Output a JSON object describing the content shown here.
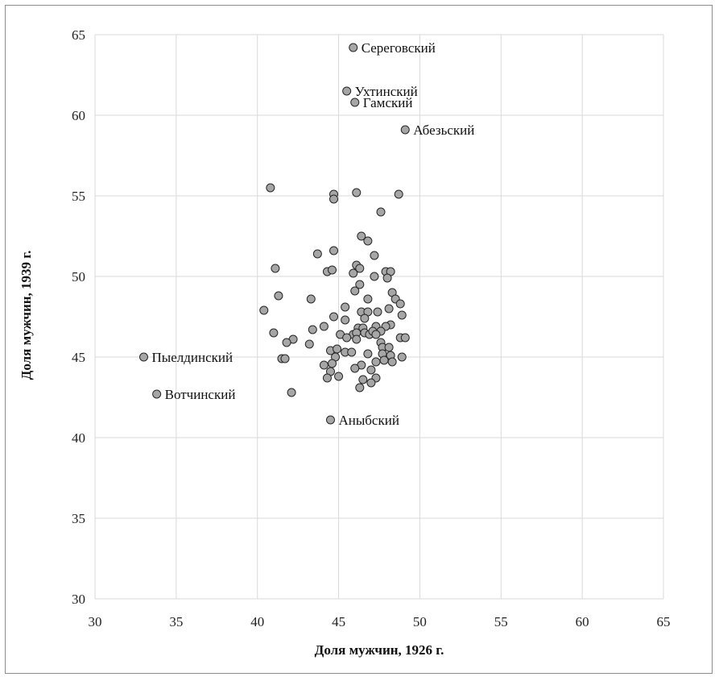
{
  "chart_data": {
    "type": "scatter",
    "title": "",
    "xlabel": "Доля мужчин, 1926 г.",
    "ylabel": "Доля мужчин, 1939 г.",
    "xlim": [
      30,
      65
    ],
    "ylim": [
      30,
      65
    ],
    "xticks": [
      30,
      35,
      40,
      45,
      50,
      55,
      60,
      65
    ],
    "yticks": [
      30,
      35,
      40,
      45,
      50,
      55,
      60,
      65
    ],
    "grid": true,
    "legend": "none",
    "marker_fill": "#a6a6a6",
    "marker_stroke": "#262626",
    "labeled_points": [
      {
        "label": "Сереговский",
        "x": 45.9,
        "y": 64.2
      },
      {
        "label": "Ухтинский",
        "x": 45.5,
        "y": 61.5
      },
      {
        "label": "Гамский",
        "x": 46.0,
        "y": 60.8
      },
      {
        "label": "Абезьский",
        "x": 49.1,
        "y": 59.1
      },
      {
        "label": "Пыелдинский",
        "x": 33.0,
        "y": 45.0
      },
      {
        "label": "Вотчинский",
        "x": 33.8,
        "y": 42.7
      },
      {
        "label": "Аныбский",
        "x": 44.5,
        "y": 41.1
      }
    ],
    "points": [
      {
        "x": 40.8,
        "y": 55.5
      },
      {
        "x": 44.7,
        "y": 55.1
      },
      {
        "x": 44.7,
        "y": 54.8
      },
      {
        "x": 46.1,
        "y": 55.2
      },
      {
        "x": 48.7,
        "y": 55.1
      },
      {
        "x": 47.6,
        "y": 54.0
      },
      {
        "x": 46.4,
        "y": 52.5
      },
      {
        "x": 46.8,
        "y": 52.2
      },
      {
        "x": 44.7,
        "y": 51.6
      },
      {
        "x": 43.7,
        "y": 51.4
      },
      {
        "x": 47.2,
        "y": 51.3
      },
      {
        "x": 41.1,
        "y": 50.5
      },
      {
        "x": 44.3,
        "y": 50.3
      },
      {
        "x": 44.6,
        "y": 50.4
      },
      {
        "x": 46.1,
        "y": 50.7
      },
      {
        "x": 46.3,
        "y": 50.5
      },
      {
        "x": 45.9,
        "y": 50.2
      },
      {
        "x": 47.2,
        "y": 50.0
      },
      {
        "x": 47.9,
        "y": 50.3
      },
      {
        "x": 48.2,
        "y": 50.3
      },
      {
        "x": 48.0,
        "y": 49.9
      },
      {
        "x": 46.3,
        "y": 49.5
      },
      {
        "x": 46.0,
        "y": 49.1
      },
      {
        "x": 48.3,
        "y": 49.0
      },
      {
        "x": 48.5,
        "y": 48.6
      },
      {
        "x": 41.3,
        "y": 48.8
      },
      {
        "x": 43.3,
        "y": 48.6
      },
      {
        "x": 46.8,
        "y": 48.6
      },
      {
        "x": 48.8,
        "y": 48.3
      },
      {
        "x": 45.4,
        "y": 48.1
      },
      {
        "x": 48.1,
        "y": 48.0
      },
      {
        "x": 40.4,
        "y": 47.9
      },
      {
        "x": 46.4,
        "y": 47.8
      },
      {
        "x": 46.8,
        "y": 47.8
      },
      {
        "x": 47.4,
        "y": 47.8
      },
      {
        "x": 48.9,
        "y": 47.6
      },
      {
        "x": 44.7,
        "y": 47.5
      },
      {
        "x": 45.4,
        "y": 47.3
      },
      {
        "x": 46.6,
        "y": 47.4
      },
      {
        "x": 48.2,
        "y": 47.0
      },
      {
        "x": 47.9,
        "y": 46.9
      },
      {
        "x": 44.1,
        "y": 46.9
      },
      {
        "x": 47.3,
        "y": 46.9
      },
      {
        "x": 46.2,
        "y": 46.8
      },
      {
        "x": 46.5,
        "y": 46.8
      },
      {
        "x": 43.4,
        "y": 46.7
      },
      {
        "x": 47.6,
        "y": 46.6
      },
      {
        "x": 41.0,
        "y": 46.5
      },
      {
        "x": 45.1,
        "y": 46.4
      },
      {
        "x": 45.9,
        "y": 46.4
      },
      {
        "x": 46.1,
        "y": 46.5
      },
      {
        "x": 46.6,
        "y": 46.5
      },
      {
        "x": 46.9,
        "y": 46.4
      },
      {
        "x": 47.1,
        "y": 46.6
      },
      {
        "x": 47.3,
        "y": 46.4
      },
      {
        "x": 42.2,
        "y": 46.1
      },
      {
        "x": 45.5,
        "y": 46.2
      },
      {
        "x": 46.1,
        "y": 46.1
      },
      {
        "x": 48.8,
        "y": 46.2
      },
      {
        "x": 49.1,
        "y": 46.2
      },
      {
        "x": 41.8,
        "y": 45.9
      },
      {
        "x": 43.2,
        "y": 45.8
      },
      {
        "x": 47.6,
        "y": 45.9
      },
      {
        "x": 47.7,
        "y": 45.6
      },
      {
        "x": 48.1,
        "y": 45.6
      },
      {
        "x": 44.5,
        "y": 45.4
      },
      {
        "x": 44.9,
        "y": 45.5
      },
      {
        "x": 45.4,
        "y": 45.3
      },
      {
        "x": 45.8,
        "y": 45.3
      },
      {
        "x": 46.8,
        "y": 45.2
      },
      {
        "x": 47.7,
        "y": 45.2
      },
      {
        "x": 48.2,
        "y": 45.1
      },
      {
        "x": 41.5,
        "y": 44.9
      },
      {
        "x": 41.7,
        "y": 44.9
      },
      {
        "x": 48.9,
        "y": 45.0
      },
      {
        "x": 44.8,
        "y": 45.0
      },
      {
        "x": 47.3,
        "y": 44.7
      },
      {
        "x": 47.8,
        "y": 44.8
      },
      {
        "x": 48.3,
        "y": 44.7
      },
      {
        "x": 44.6,
        "y": 44.6
      },
      {
        "x": 44.1,
        "y": 44.5
      },
      {
        "x": 46.4,
        "y": 44.5
      },
      {
        "x": 46.0,
        "y": 44.3
      },
      {
        "x": 47.0,
        "y": 44.2
      },
      {
        "x": 44.5,
        "y": 44.1
      },
      {
        "x": 44.3,
        "y": 43.7
      },
      {
        "x": 45.0,
        "y": 43.8
      },
      {
        "x": 46.5,
        "y": 43.6
      },
      {
        "x": 47.3,
        "y": 43.7
      },
      {
        "x": 47.0,
        "y": 43.4
      },
      {
        "x": 46.3,
        "y": 43.1
      },
      {
        "x": 42.1,
        "y": 42.8
      }
    ]
  }
}
